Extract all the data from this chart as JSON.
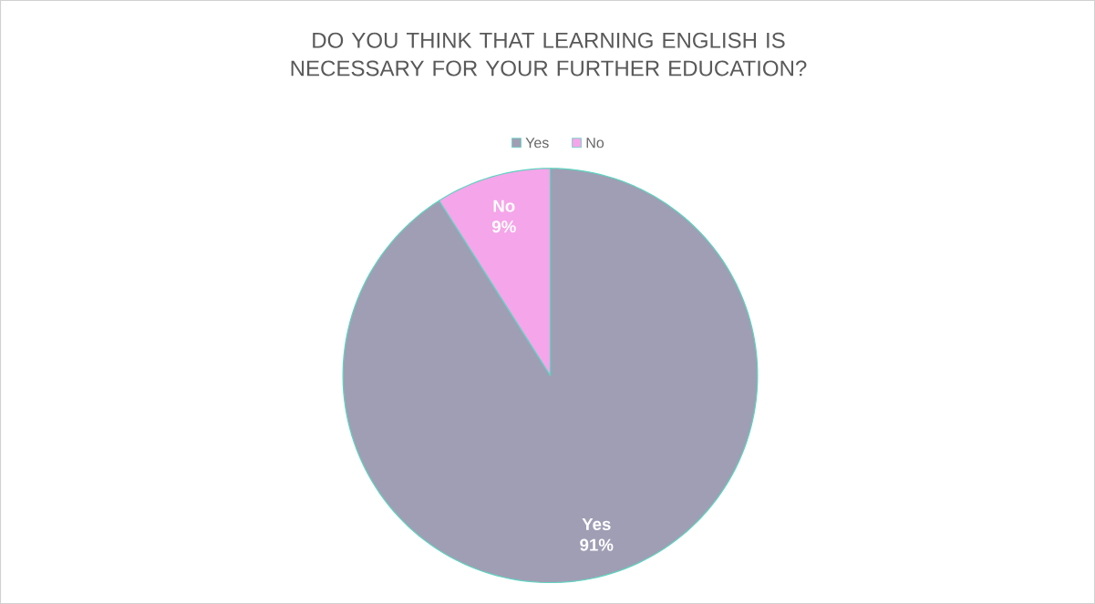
{
  "chart_data": {
    "type": "pie",
    "title": "DO YOU THINK THAT LEARNING ENGLISH IS NECESSARY FOR YOUR FURTHER EDUCATION?",
    "categories": [
      "Yes",
      "No"
    ],
    "values": [
      91,
      9
    ],
    "colors": [
      "#a09eb4",
      "#f5a5e9"
    ],
    "value_labels": [
      "91%",
      "9%"
    ],
    "legend": "top"
  }
}
